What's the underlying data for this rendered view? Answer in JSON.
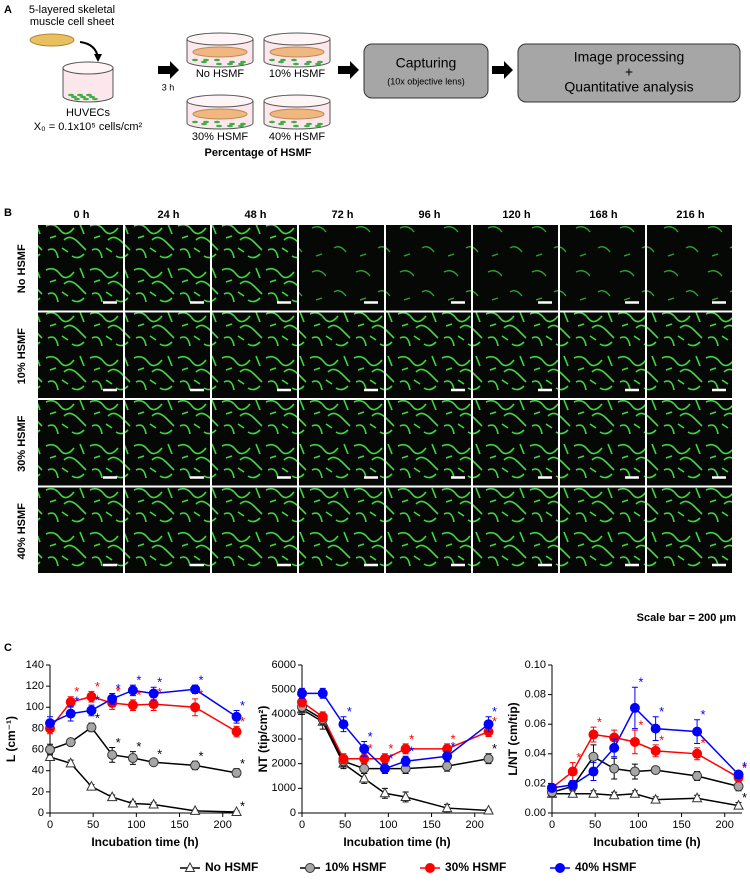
{
  "panel_a": {
    "label": "A",
    "sheet_label": [
      "5-layered skeletal",
      "muscle cell sheet"
    ],
    "cells_label": "HUVECs",
    "density_label": "X₀ = 0.1x10⁵ cells/cm²",
    "time_label": "3 h",
    "conditions": [
      "No HSMF",
      "10% HSMF",
      "30% HSMF",
      "40% HSMF"
    ],
    "conditions_title": "Percentage of HSMF",
    "step1": {
      "title": "Capturing",
      "note": "(10x objective lens)"
    },
    "step2": [
      "Image processing",
      "+",
      "Quantitative analysis"
    ]
  },
  "panel_b": {
    "label": "B",
    "times": [
      "0 h",
      "24 h",
      "48 h",
      "72 h",
      "96 h",
      "120 h",
      "168 h",
      "216 h"
    ],
    "rows": [
      "No HSMF",
      "10% HSMF",
      "30% HSMF",
      "40% HSMF"
    ],
    "scale_bar": "Scale bar = 200 μm"
  },
  "panel_c_label": "C",
  "chart_data": [
    {
      "type": "line",
      "y_label": "L (cm⁻¹)",
      "x_label": "Incubation time (h)",
      "x": [
        0,
        24,
        48,
        72,
        96,
        120,
        168,
        216
      ],
      "xlim": [
        0,
        220
      ],
      "xticks": [
        0,
        50,
        100,
        150,
        200
      ],
      "ylim": [
        0,
        140
      ],
      "yticks": [
        0,
        20,
        40,
        60,
        80,
        100,
        120,
        140
      ],
      "series": [
        {
          "name": "No HSMF",
          "color": "#000000",
          "marker": "triangle",
          "marker_fill": "#ffffff",
          "values": [
            53,
            47,
            25,
            15,
            9,
            8,
            2,
            1
          ],
          "errors": [
            3,
            3,
            2,
            2,
            2,
            2,
            1,
            1
          ],
          "significance": [
            null,
            null,
            null,
            null,
            null,
            null,
            null,
            "*"
          ]
        },
        {
          "name": "10% HSMF",
          "color": "#000000",
          "marker": "circle",
          "marker_fill": "#a6a6a6",
          "values": [
            60,
            67,
            81,
            55,
            52,
            48,
            45,
            38
          ],
          "errors": [
            5,
            3,
            4,
            7,
            6,
            3,
            4,
            4
          ],
          "significance": [
            null,
            null,
            "*",
            "*",
            "*",
            "*",
            "*",
            "*"
          ]
        },
        {
          "name": "30% HSMF",
          "color": "#ff0000",
          "marker": "circle",
          "marker_fill": "#ff0000",
          "values": [
            80,
            105,
            110,
            104,
            102,
            103,
            100,
            77
          ],
          "errors": [
            5,
            5,
            5,
            6,
            5,
            6,
            8,
            5
          ],
          "significance": [
            null,
            "*",
            "*",
            "*",
            "*",
            "*",
            "*",
            "*"
          ]
        },
        {
          "name": "40% HSMF",
          "color": "#0000ff",
          "marker": "circle",
          "marker_fill": "#0000ff",
          "values": [
            85,
            94,
            97,
            108,
            116,
            113,
            117,
            91
          ],
          "errors": [
            6,
            7,
            5,
            5,
            5,
            6,
            4,
            6
          ],
          "significance": [
            null,
            "*",
            "*",
            "*",
            "*",
            "*",
            "*",
            "*"
          ]
        }
      ]
    },
    {
      "type": "line",
      "y_label": "NT (tip/cm²)",
      "x_label": "Incubation time (h)",
      "x": [
        0,
        24,
        48,
        72,
        96,
        120,
        168,
        216
      ],
      "xlim": [
        0,
        220
      ],
      "xticks": [
        0,
        50,
        100,
        150,
        200
      ],
      "ylim": [
        0,
        6000
      ],
      "yticks": [
        0,
        1000,
        2000,
        3000,
        4000,
        5000,
        6000
      ],
      "series": [
        {
          "name": "No HSMF",
          "color": "#000000",
          "marker": "triangle",
          "marker_fill": "#ffffff",
          "values": [
            4200,
            3700,
            2000,
            1400,
            800,
            650,
            200,
            100
          ],
          "errors": [
            200,
            300,
            200,
            200,
            200,
            200,
            150,
            50
          ],
          "significance": [
            null,
            null,
            null,
            null,
            null,
            null,
            null,
            null
          ]
        },
        {
          "name": "10% HSMF",
          "color": "#000000",
          "marker": "circle",
          "marker_fill": "#a6a6a6",
          "values": [
            4300,
            3800,
            2100,
            1800,
            1800,
            1800,
            1900,
            2200
          ],
          "errors": [
            200,
            200,
            200,
            200,
            200,
            200,
            200,
            200
          ],
          "significance": [
            null,
            null,
            null,
            null,
            null,
            null,
            null,
            "*"
          ]
        },
        {
          "name": "30% HSMF",
          "color": "#ff0000",
          "marker": "circle",
          "marker_fill": "#ff0000",
          "values": [
            4500,
            3900,
            2200,
            2200,
            2200,
            2600,
            2600,
            3300
          ],
          "errors": [
            200,
            200,
            200,
            200,
            200,
            200,
            200,
            200
          ],
          "significance": [
            null,
            null,
            null,
            "*",
            "*",
            "*",
            "*",
            "*"
          ]
        },
        {
          "name": "40% HSMF",
          "color": "#0000ff",
          "marker": "circle",
          "marker_fill": "#0000ff",
          "values": [
            4850,
            4850,
            3600,
            2600,
            1800,
            2100,
            2300,
            3600
          ],
          "errors": [
            200,
            200,
            300,
            300,
            200,
            200,
            200,
            300
          ],
          "significance": [
            null,
            null,
            "*",
            "*",
            "*",
            "*",
            "*",
            "*"
          ]
        }
      ]
    },
    {
      "type": "line",
      "y_label": "L/NT (cm/tip)",
      "x_label": "Incubation time (h)",
      "x": [
        0,
        24,
        48,
        72,
        96,
        120,
        168,
        216
      ],
      "xlim": [
        0,
        220
      ],
      "xticks": [
        0,
        50,
        100,
        150,
        200
      ],
      "ylim": [
        0,
        0.1
      ],
      "yticks": [
        {
          "value": 0,
          "label": "0.00"
        },
        {
          "value": 0.02,
          "label": "0.02"
        },
        {
          "value": 0.04,
          "label": "0.04"
        },
        {
          "value": 0.06,
          "label": "0.06"
        },
        {
          "value": 0.08,
          "label": "0.08"
        },
        {
          "value": 0.1,
          "label": "0.10"
        }
      ],
      "series": [
        {
          "name": "No HSMF",
          "color": "#000000",
          "marker": "triangle",
          "marker_fill": "#ffffff",
          "values": [
            0.013,
            0.013,
            0.013,
            0.012,
            0.013,
            0.009,
            0.01,
            0.005
          ],
          "errors": [
            0.002,
            0.002,
            0.002,
            0.002,
            0.002,
            0.002,
            0.002,
            0.002
          ],
          "significance": [
            null,
            null,
            null,
            null,
            null,
            null,
            null,
            "*"
          ]
        },
        {
          "name": "10% HSMF",
          "color": "#000000",
          "marker": "circle",
          "marker_fill": "#a6a6a6",
          "values": [
            0.014,
            0.018,
            0.038,
            0.03,
            0.028,
            0.029,
            0.025,
            0.018
          ],
          "errors": [
            0.003,
            0.003,
            0.008,
            0.007,
            0.005,
            0.002,
            0.003,
            0.003
          ],
          "significance": [
            null,
            null,
            null,
            null,
            null,
            null,
            null,
            null
          ]
        },
        {
          "name": "30% HSMF",
          "color": "#ff0000",
          "marker": "circle",
          "marker_fill": "#ff0000",
          "values": [
            0.017,
            0.028,
            0.053,
            0.051,
            0.048,
            0.042,
            0.04,
            0.024
          ],
          "errors": [
            0.002,
            0.006,
            0.005,
            0.005,
            0.008,
            0.004,
            0.004,
            0.003
          ],
          "significance": [
            null,
            "*",
            "*",
            null,
            "*",
            "*",
            "*",
            "*"
          ]
        },
        {
          "name": "40% HSMF",
          "color": "#0000ff",
          "marker": "circle",
          "marker_fill": "#0000ff",
          "values": [
            0.017,
            0.019,
            0.028,
            0.044,
            0.071,
            0.057,
            0.055,
            0.026
          ],
          "errors": [
            0.002,
            0.003,
            0.006,
            0.006,
            0.014,
            0.008,
            0.008,
            0.002
          ],
          "significance": [
            null,
            null,
            null,
            null,
            "*",
            "*",
            "*",
            "*"
          ]
        }
      ]
    }
  ]
}
